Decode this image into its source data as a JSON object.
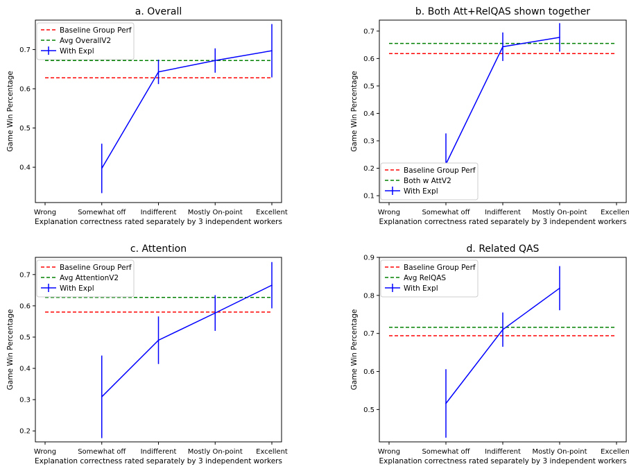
{
  "chart_data": [
    {
      "type": "line",
      "title": "a. Overall",
      "xlabel": "Explanation correctness rated separately by 3 independent workers",
      "ylabel": "Game Win Percentage",
      "categories": [
        "Wrong",
        "Somewhat off",
        "Indifferent",
        "Mostly On-point",
        "Excellent"
      ],
      "ylim": [
        0.31,
        0.775
      ],
      "yticks": [
        0.4,
        0.5,
        0.6,
        0.7
      ],
      "ytick_labels": [
        "0.4",
        "0.5",
        "0.6",
        "0.7"
      ],
      "grid": false,
      "legend_position": "upper-left",
      "series": [
        {
          "name": "Baseline Group Perf",
          "style": "dashed",
          "color": "#ff0000",
          "constant": 0.628
        },
        {
          "name": "Avg OverallV2",
          "style": "dashed",
          "color": "#008000",
          "constant": 0.672
        },
        {
          "name": "With Expl",
          "style": "errorbar",
          "color": "#0000ff",
          "values": [
            null,
            0.397,
            0.643,
            0.672,
            0.697
          ],
          "errors": [
            null,
            0.063,
            0.031,
            0.031,
            0.068
          ]
        }
      ]
    },
    {
      "type": "line",
      "title": "b. Both Att+RelQAS shown together",
      "xlabel": "Explanation correctness rated separately by 3 independent workers",
      "ylabel": "Game Win Percentage",
      "categories": [
        "Wrong",
        "Somewhat off",
        "Indifferent",
        "Mostly On-point",
        "Excellent"
      ],
      "ylim": [
        0.075,
        0.74
      ],
      "yticks": [
        0.1,
        0.2,
        0.3,
        0.4,
        0.5,
        0.6,
        0.7
      ],
      "ytick_labels": [
        "0.1",
        "0.2",
        "0.3",
        "0.4",
        "0.5",
        "0.6",
        "0.7"
      ],
      "grid": false,
      "legend_position": "lower-left",
      "series": [
        {
          "name": "Baseline Group Perf",
          "style": "dashed",
          "color": "#ff0000",
          "constant": 0.618
        },
        {
          "name": "Both w AttV2",
          "style": "dashed",
          "color": "#008000",
          "constant": 0.655
        },
        {
          "name": "With Expl",
          "style": "errorbar",
          "color": "#0000ff",
          "values": [
            null,
            0.215,
            0.643,
            0.677,
            null
          ],
          "errors": [
            null,
            0.112,
            0.052,
            0.052,
            null
          ]
        }
      ]
    },
    {
      "type": "line",
      "title": "c. Attention",
      "xlabel": "Explanation correctness rated separately by 3 independent workers",
      "ylabel": "Game Win Percentage",
      "categories": [
        "Wrong",
        "Somewhat off",
        "Indifferent",
        "Mostly On-point",
        "Excellent"
      ],
      "ylim": [
        0.165,
        0.755
      ],
      "yticks": [
        0.2,
        0.3,
        0.4,
        0.5,
        0.6,
        0.7
      ],
      "ytick_labels": [
        "0.2",
        "0.3",
        "0.4",
        "0.5",
        "0.6",
        "0.7"
      ],
      "grid": false,
      "legend_position": "upper-left",
      "series": [
        {
          "name": "Baseline Group Perf",
          "style": "dashed",
          "color": "#ff0000",
          "constant": 0.58
        },
        {
          "name": "Avg AttentionV2",
          "style": "dashed",
          "color": "#008000",
          "constant": 0.627
        },
        {
          "name": "With Expl",
          "style": "errorbar",
          "color": "#0000ff",
          "values": [
            null,
            0.309,
            0.49,
            0.577,
            0.666
          ],
          "errors": [
            null,
            0.132,
            0.076,
            0.057,
            0.074
          ]
        }
      ]
    },
    {
      "type": "line",
      "title": "d. Related QAS",
      "xlabel": "Explanation correctness rated separately by 3 independent workers",
      "ylabel": "Game Win Percentage",
      "categories": [
        "Wrong",
        "Somewhat off",
        "Indifferent",
        "Mostly On-point",
        "Excellent"
      ],
      "ylim": [
        0.415,
        0.9
      ],
      "yticks": [
        0.5,
        0.6,
        0.7,
        0.8,
        0.9
      ],
      "ytick_labels": [
        "0.5",
        "0.6",
        "0.7",
        "0.8",
        "0.9"
      ],
      "grid": false,
      "legend_position": "upper-left",
      "series": [
        {
          "name": "Baseline Group Perf",
          "style": "dashed",
          "color": "#ff0000",
          "constant": 0.694
        },
        {
          "name": "Avg RelQAS",
          "style": "dashed",
          "color": "#008000",
          "constant": 0.716
        },
        {
          "name": "With Expl",
          "style": "errorbar",
          "color": "#0000ff",
          "values": [
            null,
            0.516,
            0.71,
            0.819,
            null
          ],
          "errors": [
            null,
            0.09,
            0.045,
            0.058,
            null
          ]
        }
      ]
    }
  ]
}
